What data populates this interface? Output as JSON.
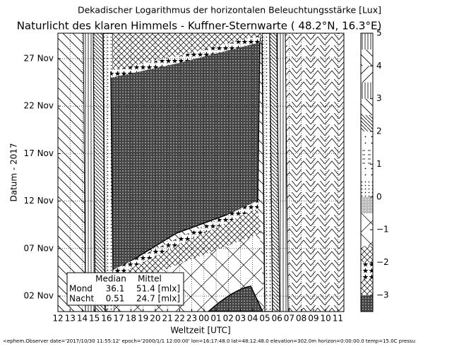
{
  "chart_data": {
    "type": "contour",
    "title": "Dekadischer Logarithmus der horizontalen Beleuchtungsstärke [Lux]",
    "subtitle": "Naturlicht des klaren Himmels - Kuffner-Sternwarte ( 48.2°N, 16.3°E)",
    "x_label": "Weltzeit [UTC]",
    "y_label": "Datum - 2017",
    "xlim": [
      12,
      35.5
    ],
    "xticks": [
      12,
      13,
      14,
      15,
      16,
      17,
      18,
      19,
      20,
      21,
      22,
      23,
      {
        "value": 24,
        "label": "00"
      },
      {
        "value": 25,
        "label": "01"
      },
      {
        "value": 26,
        "label": "02"
      },
      {
        "value": 27,
        "label": "03"
      },
      {
        "value": 28,
        "label": "04"
      },
      {
        "value": 29,
        "label": "05"
      },
      {
        "value": 30,
        "label": "06"
      },
      {
        "value": 31,
        "label": "07"
      },
      {
        "value": 32,
        "label": "08"
      },
      {
        "value": 33,
        "label": "09"
      },
      {
        "value": 34,
        "label": "10"
      },
      {
        "value": 35,
        "label": "11"
      }
    ],
    "ylim": [
      0.37,
      29.67
    ],
    "yticks": [
      {
        "value": 2,
        "label": "02 Nov"
      },
      {
        "value": 7,
        "label": "07 Nov"
      },
      {
        "value": 12,
        "label": "12 Nov"
      },
      {
        "value": 17,
        "label": "17 Nov"
      },
      {
        "value": 22,
        "label": "22 Nov"
      },
      {
        "value": 27,
        "label": "27 Nov"
      }
    ],
    "grid": true,
    "levels": [
      -3.5,
      -3,
      -2.5,
      -2,
      -1.5,
      -1,
      -0.5,
      0,
      0.5,
      1,
      1.5,
      2,
      2.5,
      3,
      3.5,
      4,
      4.5,
      5
    ],
    "clim": [
      -3.5,
      5
    ],
    "cticks": [
      {
        "value": -3,
        "label": "−3"
      },
      {
        "value": -2,
        "label": "−2"
      },
      {
        "value": -1,
        "label": "−1"
      },
      0,
      1,
      2,
      3,
      4,
      5
    ],
    "table": {
      "header": [
        "Median",
        "Mittel"
      ],
      "rows": [
        [
          "Mond",
          "36.1",
          "51.4 [mlx]"
        ],
        [
          "Nacht",
          "0.51",
          "24.7 [mlx]"
        ]
      ]
    },
    "footer": "<ephem.Observer date='2017/10/30 11:55:12' epoch='2000/1/1 12:00:00' lon=16:17:48.0 lat=48:12:48.0 elevation=302.0m horizon=0:00:00.0 temp=15.0C pressu"
  }
}
